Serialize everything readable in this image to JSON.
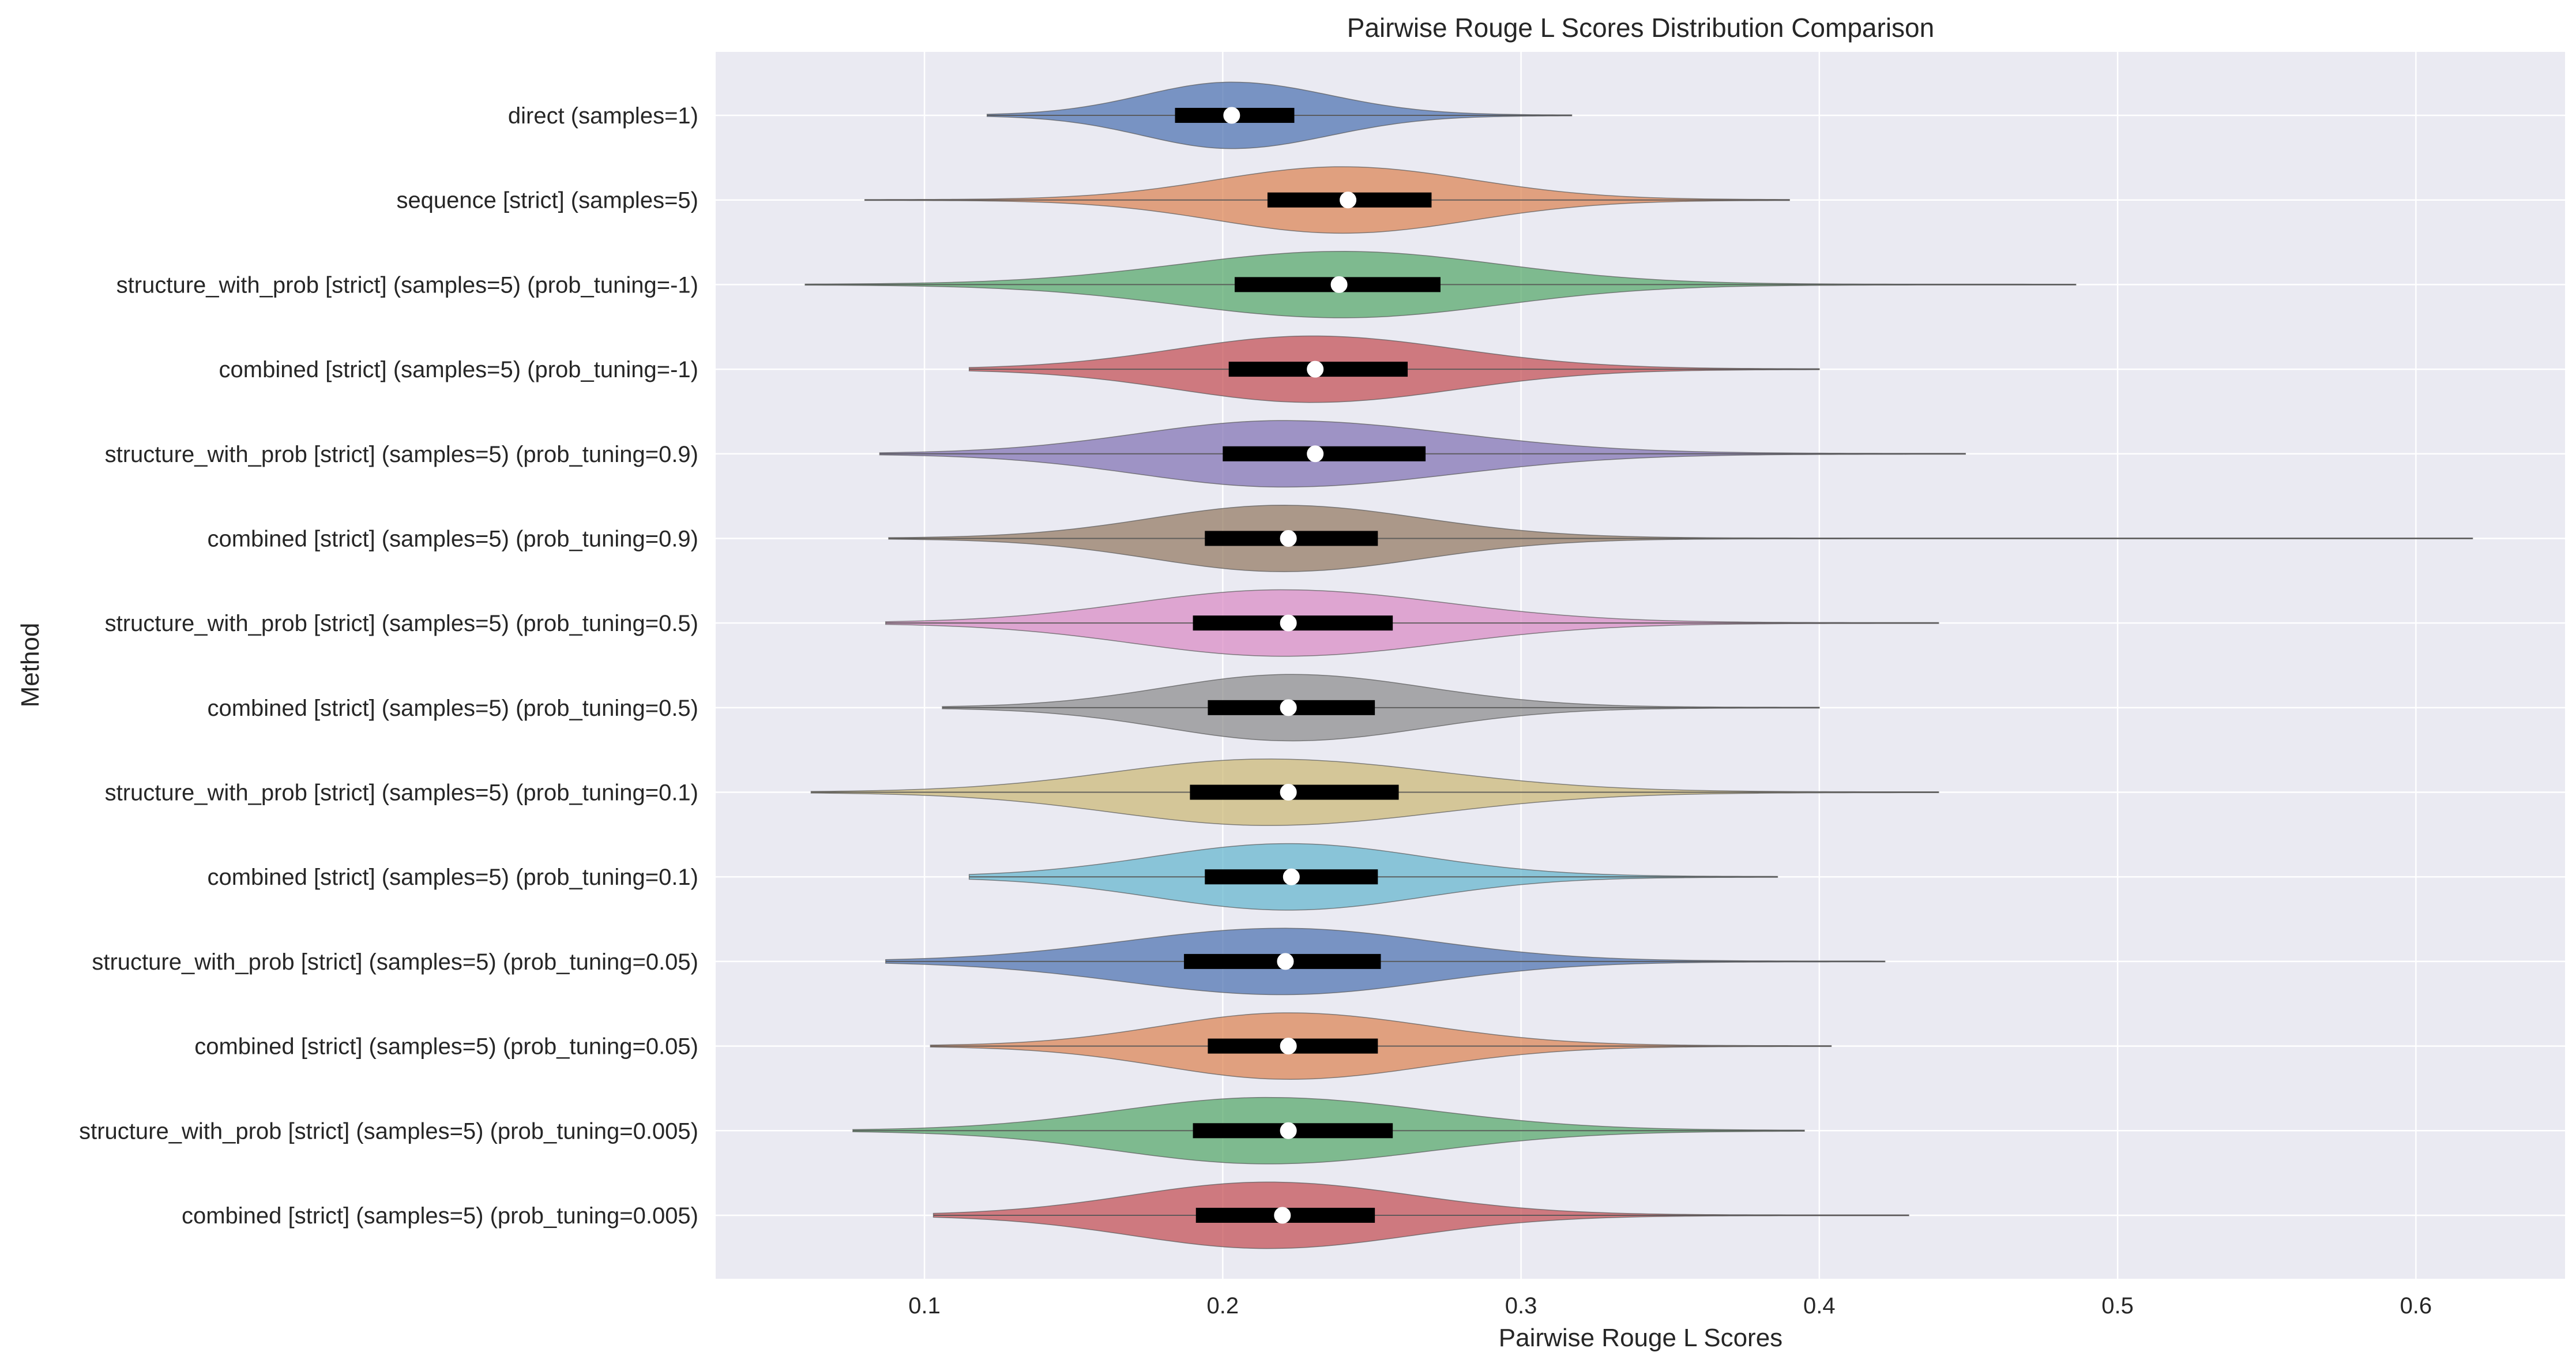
{
  "chart_data": {
    "type": "violin",
    "orientation": "horizontal",
    "title": "Pairwise Rouge L Scores Distribution Comparison",
    "xlabel": "Pairwise Rouge L Scores",
    "ylabel": "Method",
    "xlim": [
      0.03,
      0.65
    ],
    "xticks": [
      0.1,
      0.2,
      0.3,
      0.4,
      0.5,
      0.6
    ],
    "xtick_labels": [
      "0.1",
      "0.2",
      "0.3",
      "0.4",
      "0.5",
      "0.6"
    ],
    "grid": true,
    "background": "#eaeaf2",
    "series": [
      {
        "label": "direct (samples=1)",
        "color": "#4c72b0",
        "min": 0.121,
        "q1": 0.184,
        "median": 0.203,
        "q3": 0.224,
        "max": 0.317,
        "mode": 0.203,
        "half_width": 0.4,
        "spread": 0.026
      },
      {
        "label": "sequence [strict] (samples=5)",
        "color": "#dd8452",
        "min": 0.08,
        "q1": 0.215,
        "median": 0.242,
        "q3": 0.27,
        "max": 0.39,
        "mode": 0.24,
        "half_width": 0.4,
        "spread": 0.042
      },
      {
        "label": "structure_with_prob [strict] (samples=5) (prob_tuning=-1)",
        "color": "#55a868",
        "min": 0.06,
        "q1": 0.204,
        "median": 0.239,
        "q3": 0.273,
        "max": 0.486,
        "mode": 0.24,
        "half_width": 0.4,
        "spread": 0.05
      },
      {
        "label": "combined [strict] (samples=5) (prob_tuning=-1)",
        "color": "#c44e52",
        "min": 0.115,
        "q1": 0.202,
        "median": 0.231,
        "q3": 0.262,
        "max": 0.4,
        "mode": 0.23,
        "half_width": 0.4,
        "spread": 0.045
      },
      {
        "label": "structure_with_prob [strict] (samples=5) (prob_tuning=0.9)",
        "color": "#8172b3",
        "min": 0.085,
        "q1": 0.2,
        "median": 0.231,
        "q3": 0.268,
        "max": 0.449,
        "mode": 0.22,
        "half_width": 0.4,
        "spread": 0.05
      },
      {
        "label": "combined [strict] (samples=5) (prob_tuning=0.9)",
        "color": "#937860",
        "min": 0.088,
        "q1": 0.194,
        "median": 0.222,
        "q3": 0.252,
        "max": 0.619,
        "mode": 0.22,
        "half_width": 0.4,
        "spread": 0.045
      },
      {
        "label": "structure_with_prob [strict] (samples=5) (prob_tuning=0.5)",
        "color": "#da8bc3",
        "min": 0.087,
        "q1": 0.19,
        "median": 0.222,
        "q3": 0.257,
        "max": 0.44,
        "mode": 0.22,
        "half_width": 0.4,
        "spread": 0.047
      },
      {
        "label": "combined [strict] (samples=5) (prob_tuning=0.5)",
        "color": "#8c8c8c",
        "min": 0.106,
        "q1": 0.195,
        "median": 0.222,
        "q3": 0.251,
        "max": 0.4,
        "mode": 0.223,
        "half_width": 0.4,
        "spread": 0.042
      },
      {
        "label": "structure_with_prob [strict] (samples=5) (prob_tuning=0.1)",
        "color": "#ccb974",
        "min": 0.062,
        "q1": 0.189,
        "median": 0.222,
        "q3": 0.259,
        "max": 0.44,
        "mode": 0.215,
        "half_width": 0.4,
        "spread": 0.048
      },
      {
        "label": "combined [strict] (samples=5) (prob_tuning=0.1)",
        "color": "#64b5cd",
        "min": 0.115,
        "q1": 0.194,
        "median": 0.223,
        "q3": 0.252,
        "max": 0.386,
        "mode": 0.222,
        "half_width": 0.4,
        "spread": 0.043
      },
      {
        "label": "structure_with_prob [strict] (samples=5) (prob_tuning=0.05)",
        "color": "#4c72b0",
        "min": 0.087,
        "q1": 0.187,
        "median": 0.221,
        "q3": 0.253,
        "max": 0.422,
        "mode": 0.22,
        "half_width": 0.4,
        "spread": 0.046
      },
      {
        "label": "combined [strict] (samples=5) (prob_tuning=0.05)",
        "color": "#dd8452",
        "min": 0.102,
        "q1": 0.195,
        "median": 0.222,
        "q3": 0.252,
        "max": 0.404,
        "mode": 0.222,
        "half_width": 0.4,
        "spread": 0.043
      },
      {
        "label": "structure_with_prob [strict] (samples=5) (prob_tuning=0.005)",
        "color": "#55a868",
        "min": 0.076,
        "q1": 0.19,
        "median": 0.222,
        "q3": 0.257,
        "max": 0.395,
        "mode": 0.215,
        "half_width": 0.4,
        "spread": 0.045
      },
      {
        "label": "combined [strict] (samples=5) (prob_tuning=0.005)",
        "color": "#c44e52",
        "min": 0.103,
        "q1": 0.191,
        "median": 0.22,
        "q3": 0.251,
        "max": 0.43,
        "mode": 0.215,
        "half_width": 0.4,
        "spread": 0.043
      }
    ]
  }
}
